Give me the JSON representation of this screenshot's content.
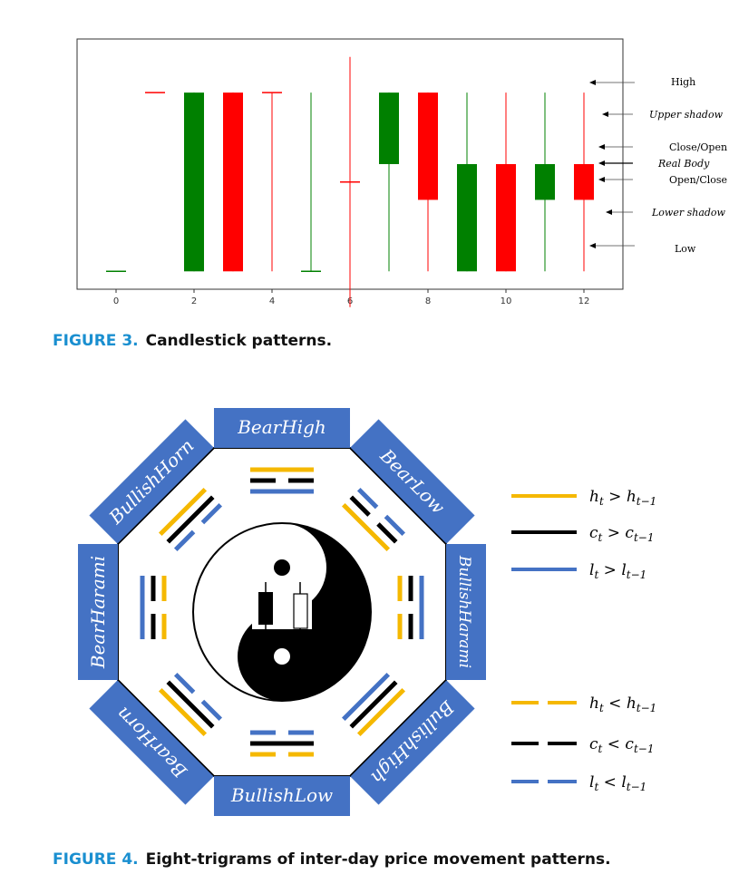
{
  "figure3": {
    "label": "FIGURE 3.",
    "text": "Candlestick patterns.",
    "chart_data": {
      "type": "candlestick",
      "x_ticks": [
        "0",
        "2",
        "4",
        "6",
        "8",
        "10",
        "12"
      ],
      "xlim": [
        -1,
        13
      ],
      "ylim": [
        -0.1,
        1.3
      ],
      "candles": [
        {
          "x": 0,
          "open": 0.0,
          "close": 0.0,
          "high": 0.0,
          "low": 0.0,
          "color": "#008000"
        },
        {
          "x": 1,
          "open": 1.0,
          "close": 1.0,
          "high": 1.0,
          "low": 1.0,
          "color": "#ff0000"
        },
        {
          "x": 2,
          "open": 0.0,
          "close": 1.0,
          "high": 1.0,
          "low": 0.0,
          "color": "#008000"
        },
        {
          "x": 3,
          "open": 1.0,
          "close": 0.0,
          "high": 1.0,
          "low": 0.0,
          "color": "#ff0000"
        },
        {
          "x": 4,
          "open": 1.0,
          "close": 1.0,
          "high": 1.0,
          "low": 0.0,
          "color": "#ff0000"
        },
        {
          "x": 5,
          "open": 0.0,
          "close": 0.0,
          "high": 1.0,
          "low": 0.0,
          "color": "#008000"
        },
        {
          "x": 6,
          "open": 0.5,
          "close": 0.5,
          "high": 1.2,
          "low": -0.2,
          "color": "#ff0000"
        },
        {
          "x": 7,
          "open": 0.6,
          "close": 1.0,
          "high": 1.0,
          "low": 0.0,
          "color": "#008000"
        },
        {
          "x": 8,
          "open": 1.0,
          "close": 0.4,
          "high": 1.0,
          "low": 0.0,
          "color": "#ff0000"
        },
        {
          "x": 9,
          "open": 0.0,
          "close": 0.6,
          "high": 1.0,
          "low": 0.0,
          "color": "#008000"
        },
        {
          "x": 10,
          "open": 0.6,
          "close": 0.0,
          "high": 1.0,
          "low": 0.0,
          "color": "#ff0000"
        },
        {
          "x": 11,
          "open": 0.4,
          "close": 0.6,
          "high": 1.0,
          "low": 0.0,
          "color": "#008000"
        },
        {
          "x": 12,
          "open": 0.6,
          "close": 0.4,
          "high": 1.0,
          "low": 0.0,
          "color": "#ff0000"
        }
      ],
      "annotations": [
        {
          "text": "High",
          "style": "normal"
        },
        {
          "text": "Upper shadow",
          "style": "italic"
        },
        {
          "text": "Close/Open",
          "style": "normal"
        },
        {
          "text": "Real Body",
          "style": "italic"
        },
        {
          "text": "Open/Close",
          "style": "normal"
        },
        {
          "text": "Lower shadow",
          "style": "italic"
        },
        {
          "text": "Low",
          "style": "normal"
        }
      ]
    }
  },
  "figure4": {
    "label": "FIGURE 4.",
    "text": "Eight-trigrams of inter-day price movement patterns.",
    "labels": {
      "top": "BearHigh",
      "top_right": "BearLow",
      "right": "BullishHarami",
      "bottom_right": "BullishHigh",
      "bottom": "BullishLow",
      "bottom_left": "BearHorn",
      "left": "BearHarami",
      "top_left": "BullishHorn"
    },
    "legend": [
      {
        "text": "h_t > h_{t-1}",
        "color": "#f5b800",
        "dashed": false
      },
      {
        "text": "c_t > c_{t-1}",
        "color": "#000000",
        "dashed": false
      },
      {
        "text": "l_t > l_{t-1}",
        "color": "#4472c4",
        "dashed": false
      },
      {
        "text": "h_t < h_{t-1}",
        "color": "#f5b800",
        "dashed": true
      },
      {
        "text": "c_t < c_{t-1}",
        "color": "#000000",
        "dashed": true
      },
      {
        "text": "l_t < l_{t-1}",
        "color": "#4472c4",
        "dashed": true
      }
    ],
    "colors": {
      "panel": "#4472c4",
      "high": "#f5b800",
      "close": "#000000",
      "low": "#4472c4",
      "panel_text": "#ffffff"
    }
  }
}
